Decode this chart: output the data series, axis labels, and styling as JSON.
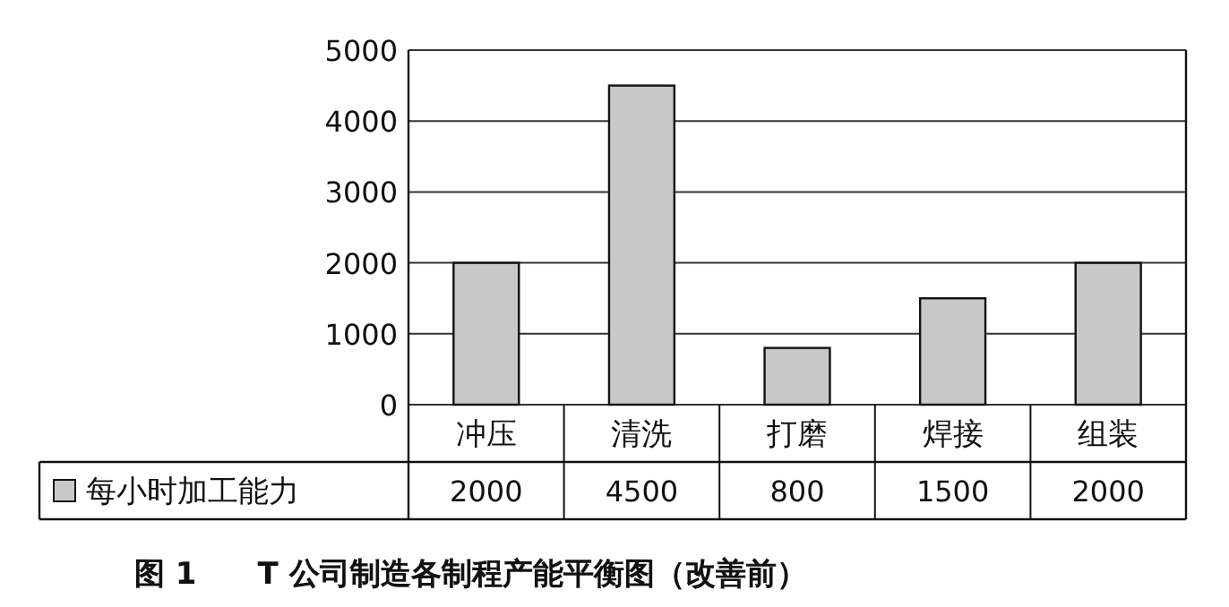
{
  "chart_data": {
    "type": "bar",
    "title": "图 1　　T 公司制造各制程产能平衡图（改善前）",
    "categories": [
      "冲压",
      "清洗",
      "打磨",
      "焊接",
      "组装"
    ],
    "series": [
      {
        "name": "每小时加工能力",
        "color": "#c8c8c8",
        "values": [
          2000,
          4500,
          800,
          1500,
          2000
        ]
      }
    ],
    "value_labels": [
      "2000",
      "4500",
      "800",
      "1500",
      "2000"
    ],
    "ylim": [
      0,
      5000
    ],
    "yticks": [
      0,
      1000,
      2000,
      3000,
      4000,
      5000
    ],
    "grid": "y",
    "legend": "bottom left"
  }
}
